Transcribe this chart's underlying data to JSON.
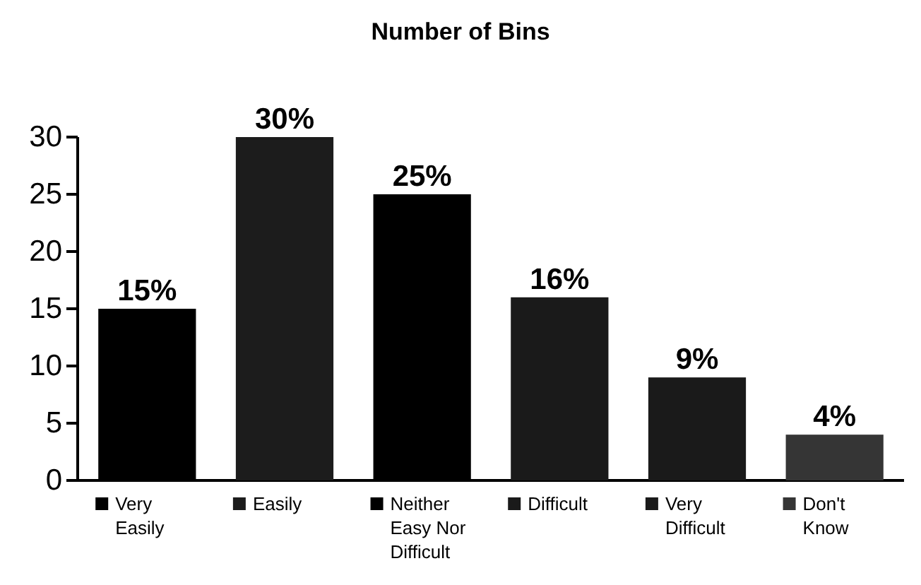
{
  "chart_data": {
    "type": "bar",
    "title": "Number of Bins",
    "categories": [
      "Very Easily",
      "Easily",
      "Neither Easy Nor Difficult",
      "Difficult",
      "Very Difficult",
      "Don't Know"
    ],
    "values": [
      15,
      30,
      25,
      16,
      9,
      4
    ],
    "colors": [
      "#000000",
      "#1c1c1c",
      "#000000",
      "#1a1a1a",
      "#1a1a1a",
      "#353535"
    ],
    "value_labels": [
      "15%",
      "30%",
      "25%",
      "16%",
      "9%",
      "4%"
    ],
    "ylim": [
      0,
      30
    ],
    "yticks": [
      0,
      5,
      10,
      15,
      20,
      25,
      30
    ],
    "grid": false
  }
}
